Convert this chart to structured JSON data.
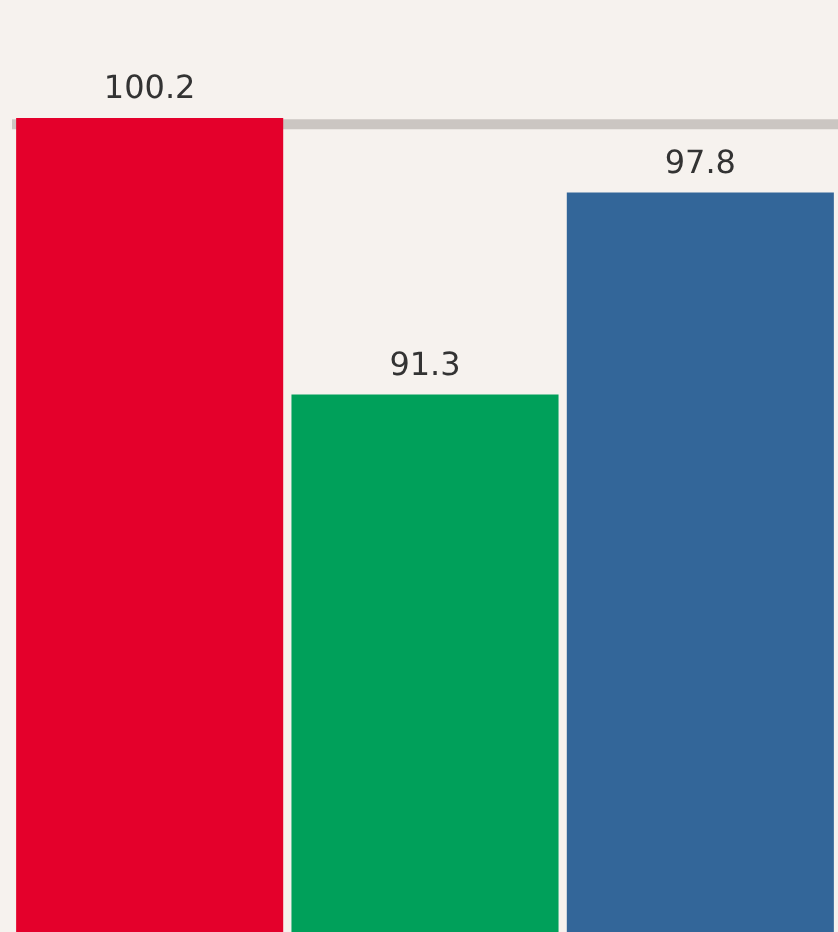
{
  "chart_data": {
    "type": "bar",
    "categories": [
      null,
      null,
      null
    ],
    "values": [
      100.2,
      91.3,
      97.8
    ],
    "colors": [
      "#e4002b",
      "#00a05a",
      "#336699"
    ],
    "ylim": [
      74,
      104
    ],
    "legend": false,
    "data_labels": true,
    "ref_lines": [
      {
        "axis": "y",
        "value": 100,
        "color": "#cbc6c2"
      }
    ]
  }
}
